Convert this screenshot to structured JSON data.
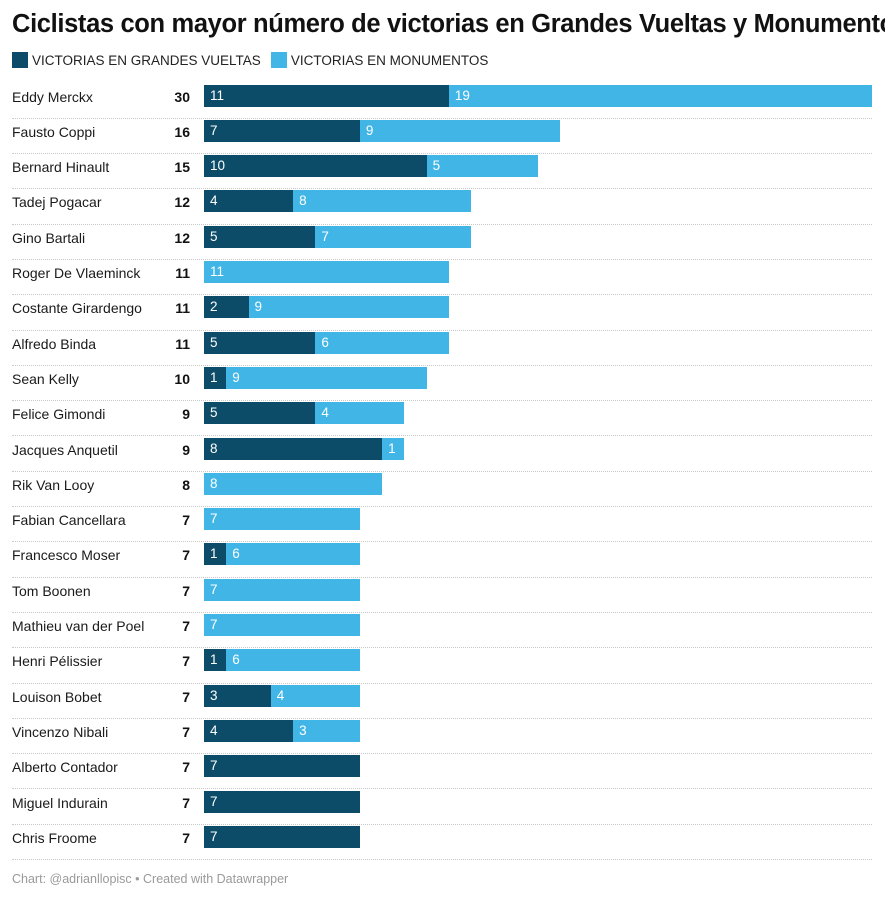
{
  "title": "Ciclistas con mayor número de victorias en Grandes Vueltas y Monumentos",
  "legend": {
    "gv_label": "VICTORIAS EN GRANDES VUELTAS",
    "mon_label": "VICTORIAS EN MONUMENTOS"
  },
  "colors": {
    "gv": "#0c4c68",
    "mon": "#41b6e6"
  },
  "footer": "Chart: @adrianllopisc • Created with Datawrapper",
  "chart_data": {
    "type": "bar",
    "orientation": "horizontal",
    "stacked": true,
    "title": "Ciclistas con mayor número de victorias en Grandes Vueltas y Monumentos",
    "xlim": [
      0,
      30
    ],
    "legend_position": "top-left",
    "grid": false,
    "categories": [
      "Eddy Merckx",
      "Fausto Coppi",
      "Bernard Hinault",
      "Tadej Pogacar",
      "Gino Bartali",
      "Roger De Vlaeminck",
      "Costante Girardengo",
      "Alfredo Binda",
      "Sean Kelly",
      "Felice Gimondi",
      "Jacques Anquetil",
      "Rik Van Looy",
      "Fabian Cancellara",
      "Francesco Moser",
      "Tom Boonen",
      "Mathieu van der Poel",
      "Henri Pélissier",
      "Louison Bobet",
      "Vincenzo Nibali",
      "Alberto Contador",
      "Miguel Indurain",
      "Chris Froome"
    ],
    "totals": [
      30,
      16,
      15,
      12,
      12,
      11,
      11,
      11,
      10,
      9,
      9,
      8,
      7,
      7,
      7,
      7,
      7,
      7,
      7,
      7,
      7,
      7
    ],
    "series": [
      {
        "name": "VICTORIAS EN GRANDES VUELTAS",
        "values": [
          11,
          7,
          10,
          4,
          5,
          0,
          2,
          5,
          1,
          5,
          8,
          0,
          0,
          1,
          0,
          0,
          1,
          3,
          4,
          7,
          7,
          7
        ]
      },
      {
        "name": "VICTORIAS EN MONUMENTOS",
        "values": [
          19,
          9,
          5,
          8,
          7,
          11,
          9,
          6,
          9,
          4,
          1,
          8,
          7,
          6,
          7,
          7,
          6,
          4,
          3,
          0,
          0,
          0
        ]
      }
    ]
  }
}
